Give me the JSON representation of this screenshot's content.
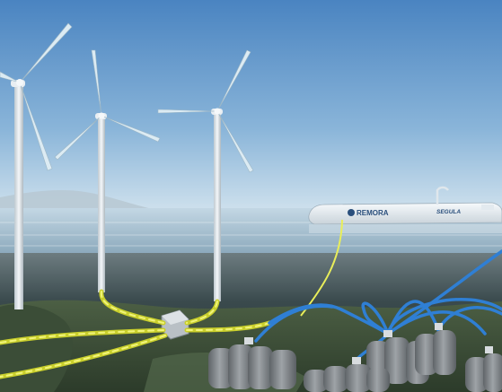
{
  "scene": {
    "vessel_brand_left": "REMORA",
    "vessel_brand_right": "SEGULA",
    "colors": {
      "sky_top": "#4c86c2",
      "sky_bottom": "#cfe1ee",
      "sea_surface": "#aec6d6",
      "underwater": "#2f3f45",
      "seabed": "#3c5238",
      "cable_yellow": "#e9ee5a",
      "cable_blue": "#2f7fd4",
      "tank": "#7e8387"
    }
  }
}
